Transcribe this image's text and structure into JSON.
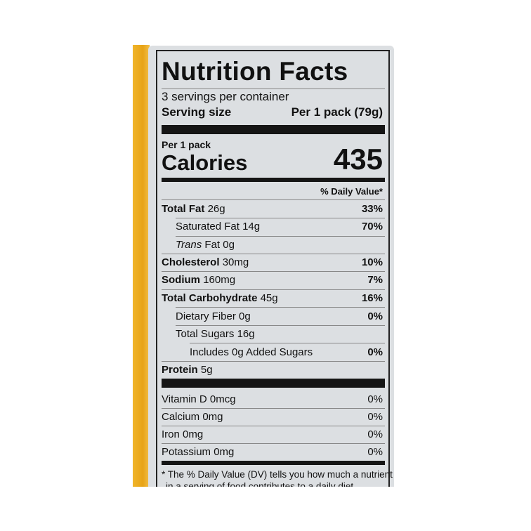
{
  "label": {
    "title": "Nutrition Facts",
    "servings_per_container": "3 servings per container",
    "serving_size_label": "Serving size",
    "serving_size_value": "Per 1 pack (79g)",
    "per_label": "Per 1 pack",
    "calories_label": "Calories",
    "calories_value": "435",
    "daily_value_header": "% Daily Value*",
    "nutrients": [
      {
        "name": "Total Fat",
        "amount": "26g",
        "dv": "33%"
      },
      {
        "name": "Saturated Fat",
        "amount": "14g",
        "dv": "70%"
      },
      {
        "name": "Trans",
        "name_suffix": "Fat",
        "amount": "0g",
        "dv": ""
      },
      {
        "name": "Cholesterol",
        "amount": "30mg",
        "dv": "10%"
      },
      {
        "name": "Sodium",
        "amount": "160mg",
        "dv": "7%"
      },
      {
        "name": "Total Carbohydrate",
        "amount": "45g",
        "dv": "16%"
      },
      {
        "name": "Dietary Fiber",
        "amount": "0g",
        "dv": "0%"
      },
      {
        "name": "Total Sugars",
        "amount": "16g",
        "dv": ""
      },
      {
        "name": "Includes 0g Added Sugars",
        "amount": "",
        "dv": "0%"
      },
      {
        "name": "Protein",
        "amount": "5g",
        "dv": ""
      }
    ],
    "vitamins": [
      {
        "name": "Vitamin D 0mcg",
        "dv": "0%"
      },
      {
        "name": "Calcium 0mg",
        "dv": "0%"
      },
      {
        "name": "Iron 0mg",
        "dv": "0%"
      },
      {
        "name": "Potassium 0mg",
        "dv": "0%"
      }
    ],
    "footnote_line1": "* The % Daily Value (DV) tells you how much a nutrient",
    "footnote_line2": "in a serving of food contributes to a daily diet."
  },
  "colors": {
    "package_yellow": "#e8a316",
    "label_gray": "#dcdfe2"
  }
}
